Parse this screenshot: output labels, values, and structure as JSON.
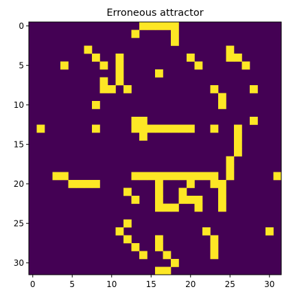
{
  "chart_data": {
    "type": "heatmap",
    "title": "Erroneous attractor",
    "xlabel": "",
    "ylabel": "",
    "rows": 32,
    "cols": 32,
    "xlim": [
      -0.5,
      31.5
    ],
    "ylim": [
      31.5,
      -0.5
    ],
    "x_ticks": [
      0,
      5,
      10,
      15,
      20,
      25,
      30
    ],
    "y_ticks": [
      0,
      5,
      10,
      15,
      20,
      25,
      30
    ],
    "colormap": "viridis",
    "colors": {
      "0": "#440154",
      "1": "#fde725"
    },
    "grid": false,
    "matrix": [
      "00000000000000111110000000000000",
      "00000000000001000010000000000000",
      "00000000000000000010000000000000",
      "00000001000000000000000001000000",
      "00000000100100000000100001100000",
      "00001000010100000000010000010000",
      "00000000000100001000000000000000",
      "00000000010100000000000000000000",
      "00000000011010000000000100001000",
      "00000000000000000000000010000000",
      "00000000100000000000000010000000",
      "00000000000000000000000000000000",
      "00000000000001100000000000001000",
      "01000000100001111111100100100000",
      "00000000000000100000000000100000",
      "00000000000000000000000000100000",
      "00000000000000000000000000100000",
      "00000000000000000000000001000000",
      "00000000000000000000000001000000",
      "00011000000001111111111101000001",
      "00000111100000001000100110000000",
      "00000000000010001001000010000000",
      "00000000000001001001110010000000",
      "00000000000000001110010010000000",
      "00000000000000000000000000000000",
      "00000000000010000000000000000000",
      "00000000000100000000001000000010",
      "00000000000010001000000100000000",
      "00000000000001001000000100000000",
      "00000000000000100100000100000000",
      "00000000000000000010000000000000",
      "00000000000000001100000000000000"
    ]
  }
}
